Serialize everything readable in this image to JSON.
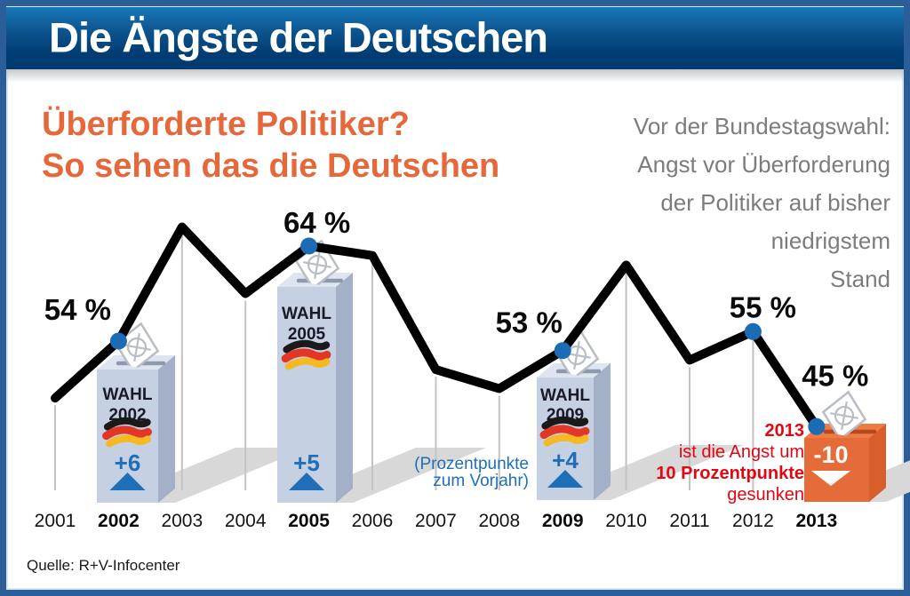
{
  "header": {
    "title": "Die Ängste der Deutschen"
  },
  "subtitle": {
    "line1": "Überforderte Politiker?",
    "line2": "So sehen das die Deutschen"
  },
  "side_note": {
    "lines": [
      "Vor der Bundestagswahl:",
      "Angst vor Überforderung",
      "der Politiker auf bisher",
      "niedrigstem",
      "Stand"
    ]
  },
  "chart_data": {
    "type": "line",
    "title": "Überforderte Politiker? So sehen das die Deutschen",
    "unit": "%",
    "x": [
      2001,
      2002,
      2003,
      2004,
      2005,
      2006,
      2007,
      2008,
      2009,
      2010,
      2011,
      2012,
      2013
    ],
    "values": [
      48,
      54,
      66,
      59,
      64,
      63,
      51,
      49,
      53,
      62,
      52,
      55,
      45
    ],
    "labeled_points": [
      {
        "year": 2002,
        "label": "54 %"
      },
      {
        "year": 2005,
        "label": "64 %"
      },
      {
        "year": 2009,
        "label": "53 %"
      },
      {
        "year": 2012,
        "label": "55 %"
      },
      {
        "year": 2013,
        "label": "45 %"
      }
    ],
    "bold_years": [
      2002,
      2005,
      2009,
      2013
    ],
    "annotations": [
      {
        "year": 2002,
        "box_label": "WAHL",
        "box_year": "2002",
        "delta": "+6",
        "direction": "up"
      },
      {
        "year": 2005,
        "box_label": "WAHL",
        "box_year": "2005",
        "delta": "+5",
        "direction": "up"
      },
      {
        "year": 2009,
        "box_label": "WAHL",
        "box_year": "2009",
        "delta": "+4",
        "direction": "up"
      },
      {
        "year": 2013,
        "delta": "-10",
        "direction": "down"
      }
    ],
    "delta_note": {
      "line1": "(Prozentpunkte",
      "line2": "zum Vorjahr)"
    },
    "highlight_note": {
      "lines": [
        "2013",
        "ist die Angst um",
        "10 Prozentpunkte",
        "gesunken"
      ]
    },
    "grid": "vertical droplines per year",
    "legend": "none",
    "y_axis": "none (values shown as point labels)"
  },
  "source": {
    "text": "Quelle: R+V-Infocenter"
  },
  "colors": {
    "header_blue_top": "#1778ba",
    "header_blue_bottom": "#003a6e",
    "orange": "#e6673a",
    "red": "#e30613",
    "blue_accent": "#1e6fb7",
    "dot_blue": "#1b6bb5",
    "line_black": "#000000",
    "gray_text": "#7c7c7c",
    "dropline_gray": "#c3c3c3",
    "shadow_gray": "#d8d8d8",
    "box_front": "#c5d0e2",
    "box_side": "#a3b0c8",
    "box_top": "#dfe5f0",
    "box_slot": "#8f99ad",
    "orange_front": "#e56c38",
    "orange_side": "#d85f2b",
    "orange_top": "#ee7a45",
    "orange_slot": "#b64a1e",
    "flag_black": "#1a1a1a",
    "flag_red": "#e23726",
    "flag_gold": "#f6b823",
    "emblem_gray": "#b9bdc6"
  }
}
